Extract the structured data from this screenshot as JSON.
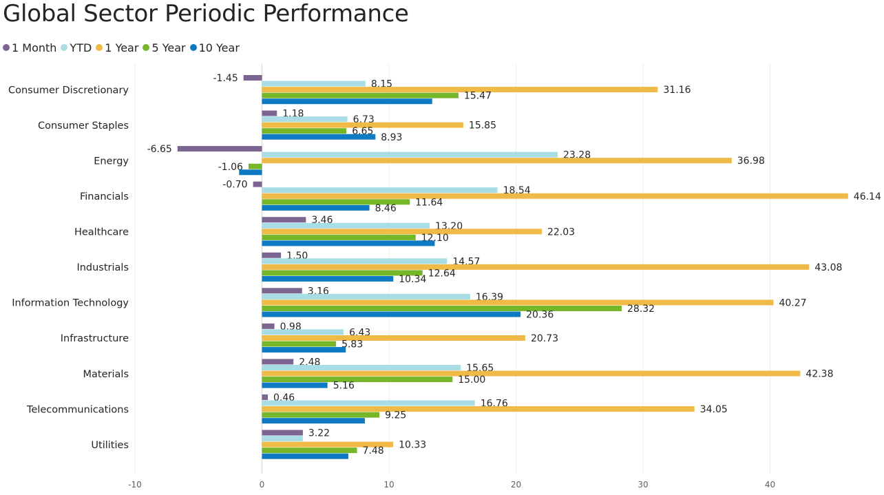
{
  "chart_data": {
    "type": "bar",
    "orientation": "horizontal",
    "title": "Global Sector Periodic Performance",
    "categories": [
      "Consumer Discretionary",
      "Consumer Staples",
      "Energy",
      "Financials",
      "Healthcare",
      "Industrials",
      "Information Technology",
      "Infrastructure",
      "Materials",
      "Telecommunications",
      "Utilities"
    ],
    "series": [
      {
        "name": "1 Month",
        "color": "#7c6591",
        "values": [
          -1.45,
          1.18,
          -6.65,
          -0.7,
          3.46,
          1.5,
          3.16,
          0.98,
          2.48,
          0.46,
          3.22
        ]
      },
      {
        "name": "YTD",
        "color": "#a9dde6",
        "values": [
          8.15,
          6.73,
          23.28,
          18.54,
          13.2,
          14.57,
          16.39,
          6.43,
          15.65,
          16.76,
          3.22
        ]
      },
      {
        "name": "1 Year",
        "color": "#efba45",
        "values": [
          31.16,
          15.85,
          36.98,
          46.14,
          22.03,
          43.08,
          40.27,
          20.73,
          42.38,
          34.05,
          10.33
        ]
      },
      {
        "name": "5 Year",
        "color": "#76b72a",
        "values": [
          15.47,
          6.65,
          -1.06,
          11.64,
          12.1,
          12.64,
          28.32,
          5.83,
          15.0,
          9.25,
          7.48
        ]
      },
      {
        "name": "10 Year",
        "color": "#0e7ac4",
        "values": [
          13.4,
          8.93,
          -1.8,
          8.46,
          13.6,
          10.34,
          20.36,
          6.6,
          5.16,
          8.1,
          6.8
        ]
      }
    ],
    "data_labels": [
      [
        "-1.45",
        "1.18",
        "-6.65",
        "-0.70",
        "3.46",
        "1.50",
        "3.16",
        "0.98",
        "2.48",
        "0.46",
        "3.22"
      ],
      [
        "8.15",
        "6.73",
        "23.28",
        "18.54",
        "13.20",
        "14.57",
        "16.39",
        "6.43",
        "15.65",
        "16.76",
        ""
      ],
      [
        "31.16",
        "15.85",
        "36.98",
        "46.14",
        "22.03",
        "43.08",
        "40.27",
        "20.73",
        "42.38",
        "34.05",
        "10.33"
      ],
      [
        "15.47",
        "6.65",
        "-1.06",
        "11.64",
        "12.10",
        "12.64",
        "28.32",
        "5.83",
        "15.00",
        "9.25",
        "7.48"
      ],
      [
        "",
        "8.93",
        "",
        "8.46",
        "",
        "10.34",
        "20.36",
        "",
        "5.16",
        "",
        ""
      ]
    ],
    "xticks": [
      -10,
      0,
      10,
      20,
      30,
      40
    ],
    "xlim": [
      -10,
      50
    ],
    "xlabel": "",
    "ylabel": "",
    "grid": true,
    "legend_position": "top-left"
  }
}
